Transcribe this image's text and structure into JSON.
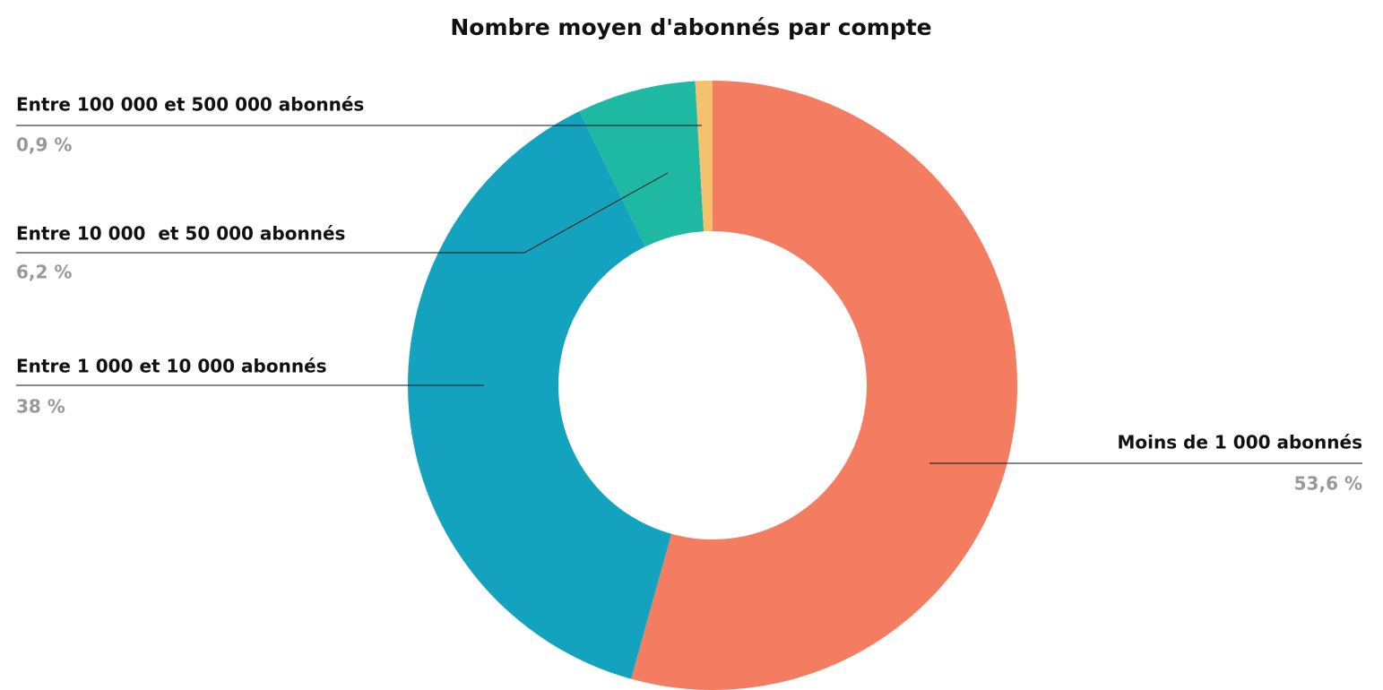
{
  "chart_data": {
    "type": "donut",
    "title": "Nombre moyen d'abonnés par compte",
    "categories": [
      "Moins de 1 000 abonnés",
      "Entre 1 000 et 10 000 abonnés",
      "Entre 10 000  et 50 000 abonnés",
      "Entre 100 000 et 500 000 abonnés"
    ],
    "values": [
      53.6,
      38,
      6.2,
      0.9
    ],
    "value_labels": [
      "53,6 %",
      "38 %",
      "6,2 %",
      "0,9 %"
    ],
    "colors": [
      "#f47c60",
      "#14a3be",
      "#1fb8a3",
      "#f5c26b"
    ]
  }
}
